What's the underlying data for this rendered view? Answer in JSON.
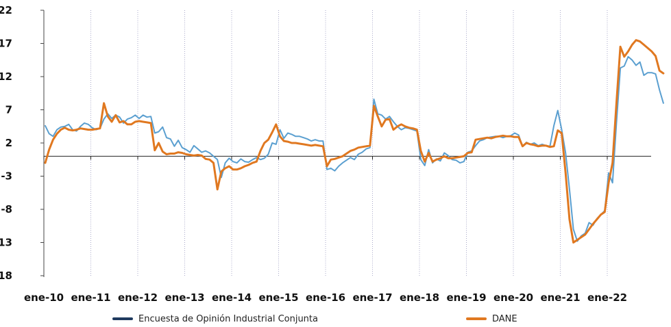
{
  "chart_data": {
    "type": "line",
    "title": "",
    "xlabel": "",
    "ylabel": "",
    "ylim": [
      -18,
      22
    ],
    "yticks": [
      "22",
      "17",
      "12",
      "7",
      "2",
      "-3",
      "-8",
      "-13",
      "-18"
    ],
    "xtick_labels": [
      "ene-10",
      "ene-11",
      "ene-12",
      "ene-13",
      "ene-14",
      "ene-15",
      "ene-16",
      "ene-17",
      "ene-18",
      "ene-19",
      "ene-20",
      "ene-21",
      "ene-22"
    ],
    "x_start": "2010-01",
    "legend_position": "bottom",
    "grid": "vertical dotted at each year",
    "series": [
      {
        "name": "Encuesta de Opinión Industrial Conjunta",
        "color": "#5a9fd0",
        "legend_color": "#1f3a5f",
        "end_label": "8,0",
        "values": [
          4.6,
          3.4,
          3.0,
          4.0,
          4.4,
          4.5,
          4.8,
          4.0,
          3.8,
          4.5,
          5.0,
          4.8,
          4.3,
          4.0,
          4.2,
          5.6,
          6.4,
          5.7,
          6.2,
          5.9,
          5.0,
          5.6,
          5.8,
          6.2,
          5.7,
          6.2,
          5.9,
          6.0,
          3.5,
          3.7,
          4.4,
          2.8,
          2.6,
          1.5,
          2.4,
          1.3,
          1.0,
          0.6,
          1.6,
          1.1,
          0.6,
          0.8,
          0.5,
          0.0,
          -0.5,
          -3.2,
          -1.0,
          -0.3,
          -0.8,
          -1.0,
          -0.4,
          -0.8,
          -0.9,
          -0.5,
          -0.2,
          -0.5,
          -0.3,
          0.3,
          2.0,
          1.8,
          4.0,
          2.7,
          3.5,
          3.3,
          3.0,
          3.0,
          2.8,
          2.6,
          2.3,
          2.5,
          2.3,
          2.3,
          -2.0,
          -1.8,
          -2.2,
          -1.5,
          -1.0,
          -0.6,
          -0.2,
          -0.5,
          0.3,
          0.6,
          1.1,
          1.3,
          8.6,
          6.4,
          6.2,
          5.6,
          6.0,
          5.2,
          4.5,
          4.0,
          4.3,
          4.2,
          4.0,
          3.8,
          -0.5,
          -1.4,
          1.0,
          -1.0,
          -0.4,
          -0.7,
          0.5,
          0.1,
          -0.5,
          -0.6,
          -1.0,
          -0.8,
          0.6,
          0.8,
          1.6,
          2.3,
          2.5,
          2.8,
          2.9,
          3.0,
          3.0,
          2.8,
          3.0,
          3.1,
          3.5,
          3.2,
          1.5,
          2.1,
          1.8,
          2.0,
          1.6,
          1.8,
          1.6,
          1.5,
          4.6,
          6.9,
          4.0,
          0.5,
          -5.0,
          -11.0,
          -12.8,
          -12.0,
          -11.6,
          -10.0,
          -10.4,
          -9.4,
          -8.8,
          -8.2,
          -2.5,
          -4.0,
          5.0,
          13.3,
          13.6,
          15.0,
          14.5,
          13.7,
          14.2,
          12.2,
          12.6,
          12.6,
          12.4,
          10.0,
          8.0
        ]
      },
      {
        "name": "DANE",
        "color": "#e07820",
        "legend_color": "#e07820",
        "end_label": "12,5",
        "values": [
          -1.0,
          1.0,
          2.5,
          3.4,
          4.0,
          4.3,
          4.0,
          3.9,
          4.0,
          4.2,
          4.1,
          4.0,
          4.0,
          4.1,
          4.2,
          8.0,
          6.0,
          5.2,
          6.2,
          5.1,
          5.3,
          4.8,
          4.8,
          5.2,
          5.3,
          5.2,
          5.1,
          5.0,
          0.9,
          2.0,
          0.7,
          0.3,
          0.4,
          0.4,
          0.6,
          0.5,
          0.3,
          0.2,
          0.1,
          0.2,
          0.1,
          -0.4,
          -0.5,
          -1.0,
          -5.0,
          -2.3,
          -1.8,
          -1.5,
          -2.0,
          -2.0,
          -1.8,
          -1.5,
          -1.3,
          -1.0,
          -0.8,
          0.8,
          2.0,
          2.5,
          3.6,
          4.8,
          3.0,
          2.3,
          2.2,
          2.0,
          2.0,
          1.9,
          1.8,
          1.7,
          1.6,
          1.7,
          1.6,
          1.5,
          -1.5,
          -0.5,
          -0.4,
          -0.2,
          0.0,
          0.4,
          0.8,
          1.0,
          1.3,
          1.4,
          1.5,
          1.6,
          7.6,
          6.0,
          4.5,
          5.5,
          5.6,
          4.0,
          4.5,
          4.8,
          4.5,
          4.3,
          4.2,
          4.0,
          0.8,
          -0.8,
          0.5,
          -0.8,
          -0.5,
          -0.3,
          0.0,
          -0.3,
          -0.3,
          -0.2,
          -0.1,
          0.0,
          0.5,
          0.6,
          2.5,
          2.6,
          2.7,
          2.8,
          2.7,
          2.9,
          3.0,
          3.1,
          3.0,
          3.0,
          2.9,
          2.9,
          1.5,
          2.0,
          1.8,
          1.7,
          1.5,
          1.6,
          1.6,
          1.4,
          1.5,
          3.9,
          3.5,
          -2.5,
          -9.5,
          -13.0,
          -12.6,
          -12.2,
          -11.8,
          -11.0,
          -10.2,
          -9.5,
          -8.8,
          -8.4,
          -4.0,
          -1.0,
          8.0,
          16.5,
          15.0,
          15.8,
          16.8,
          17.5,
          17.3,
          16.8,
          16.3,
          15.8,
          15.1,
          12.9,
          12.5
        ]
      }
    ]
  }
}
